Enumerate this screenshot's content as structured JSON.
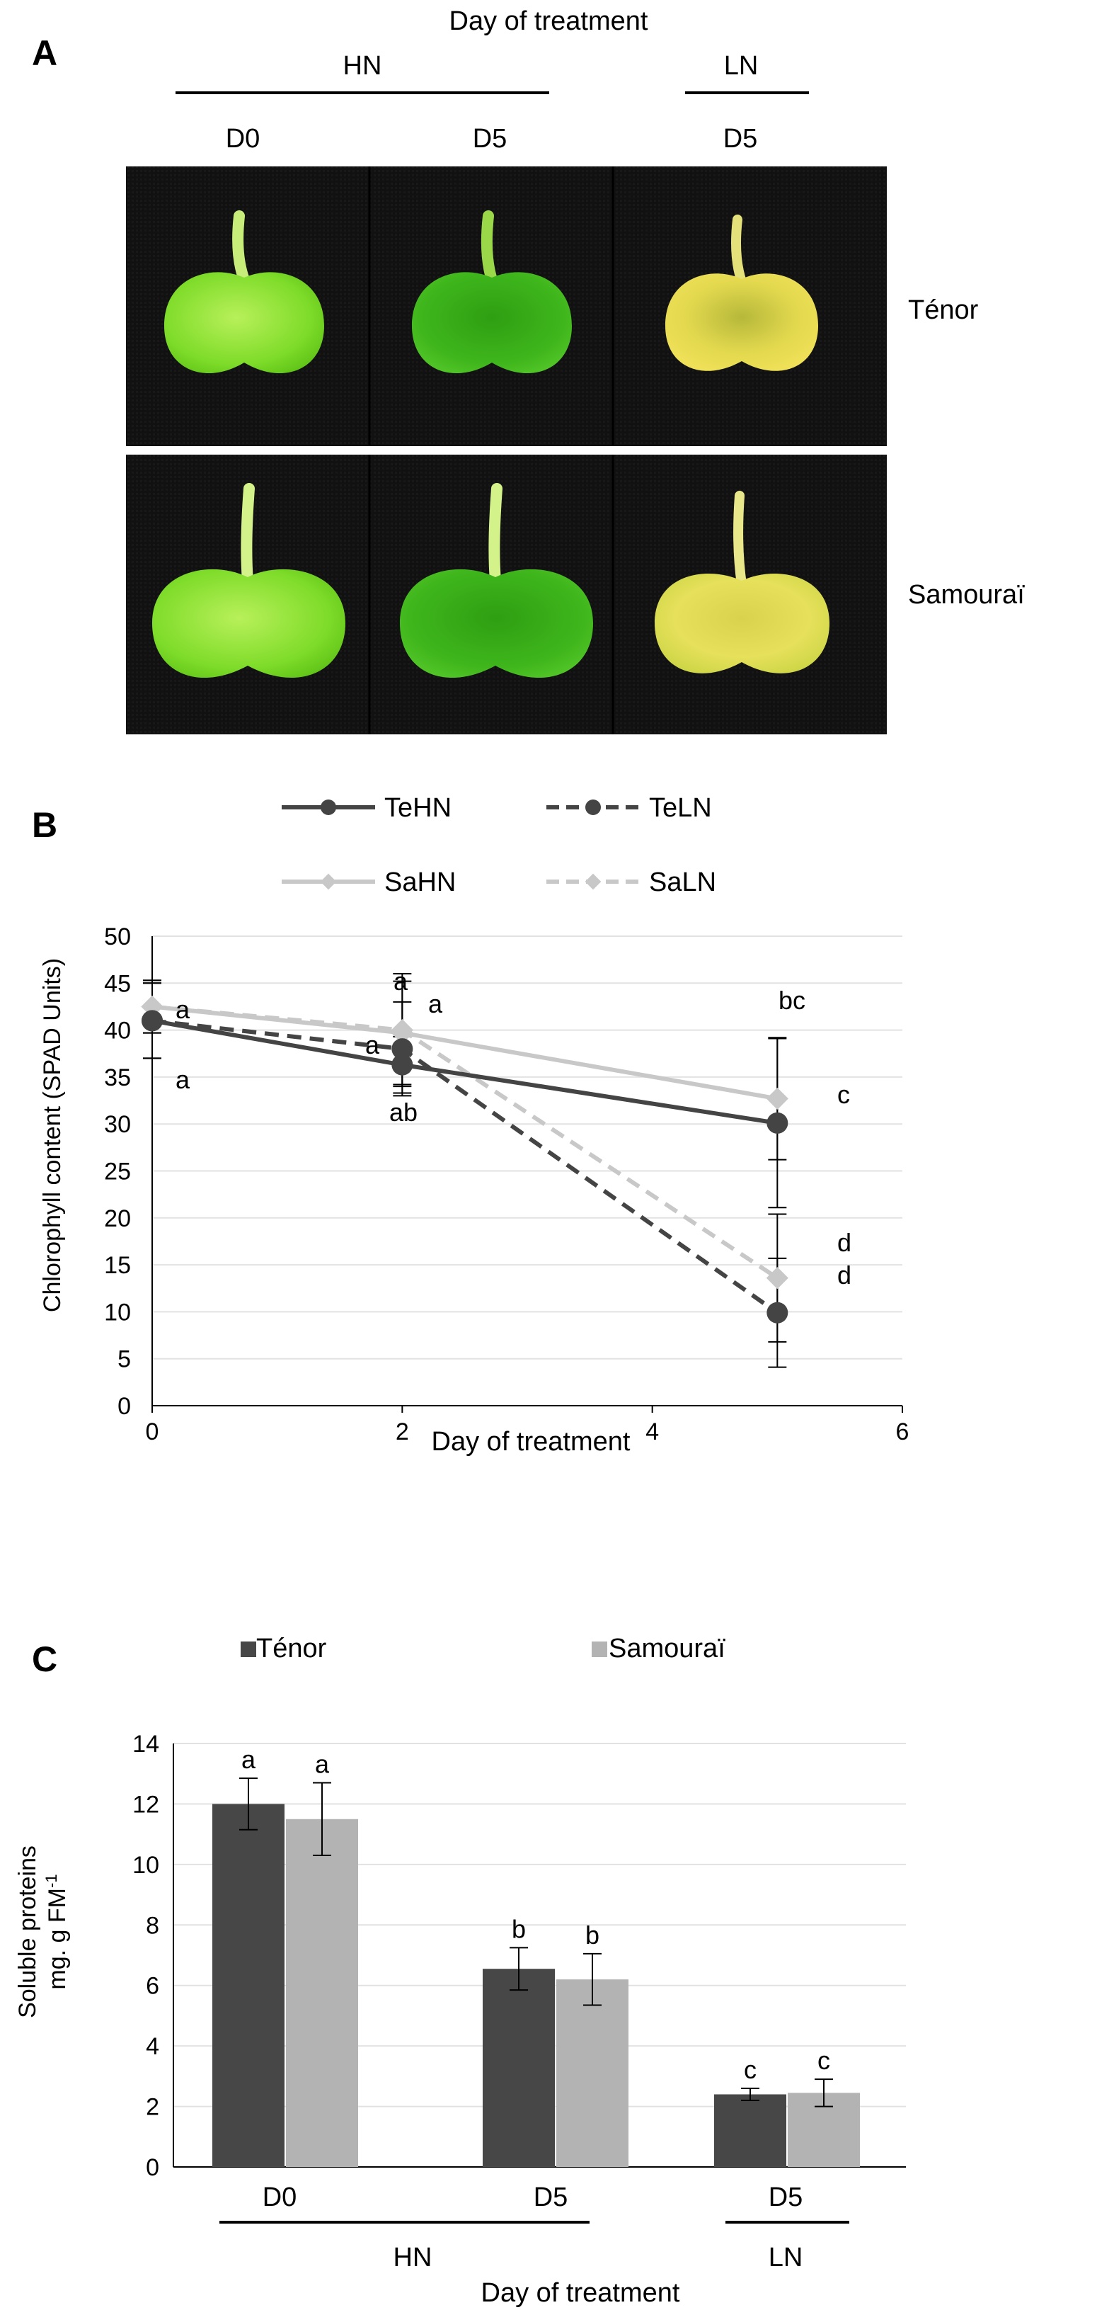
{
  "panel_a": {
    "panel_label": "A",
    "header": "Day of treatment",
    "group_hn": "HN",
    "group_ln": "LN",
    "col_labels": [
      "D0",
      "D5",
      "D5"
    ],
    "row_labels": [
      "Ténor",
      "Samouraï"
    ]
  },
  "panel_b": {
    "panel_label": "B",
    "legend": [
      "TeHN",
      "TeLN",
      "SaHN",
      "SaLN"
    ],
    "ylabel": "Chlorophyll content (SPAD Units)",
    "xlabel": "Day of treatment",
    "y_ticks": [
      "0",
      "5",
      "10",
      "15",
      "20",
      "25",
      "30",
      "35",
      "40",
      "45",
      "50"
    ],
    "x_ticks": [
      "0",
      "2",
      "4",
      "6"
    ],
    "annotations": {
      "d0_top": "a",
      "d0_bottom": "a",
      "d2_top": "a",
      "d2_right": "a",
      "d2_left": "a",
      "d2_bottom": "ab",
      "d5_top": "bc",
      "d5_c": "c",
      "d5_d1": "d",
      "d5_d2": "d"
    }
  },
  "panel_c": {
    "panel_label": "C",
    "legend": [
      "Ténor",
      "Samouraï"
    ],
    "ylabel_line1": "Soluble proteins",
    "ylabel_line2": "mg. g FM",
    "ylabel_sup": "-1",
    "y_ticks": [
      "0",
      "2",
      "4",
      "6",
      "8",
      "10",
      "12",
      "14"
    ],
    "x_categories": [
      "D0",
      "D5",
      "D5"
    ],
    "group_hn": "HN",
    "group_ln": "LN",
    "xlabel": "Day of treatment",
    "bar_letters": [
      "a",
      "a",
      "b",
      "b",
      "c",
      "c"
    ]
  },
  "chart_data": [
    {
      "type": "line",
      "xlabel": "Day of treatment",
      "ylabel": "Chlorophyll content (SPAD Units)",
      "xlim": [
        0,
        6
      ],
      "ylim": [
        0,
        50
      ],
      "grid": true,
      "legend_position": "top",
      "x": [
        0,
        2,
        5
      ],
      "series": [
        {
          "name": "TeHN",
          "values": [
            41.0,
            36.3,
            30.1
          ],
          "errors": [
            4.0,
            3.0,
            9.0
          ],
          "color": "#444444",
          "dashed": false,
          "marker": "circle"
        },
        {
          "name": "TeLN",
          "values": [
            41.0,
            38.0,
            9.9
          ],
          "errors": [
            4.0,
            5.0,
            5.8
          ],
          "color": "#444444",
          "dashed": true,
          "marker": "circle"
        },
        {
          "name": "SaHN",
          "values": [
            42.5,
            39.7,
            32.7
          ],
          "errors": [
            2.8,
            5.5,
            6.5
          ],
          "color": "#c8c8c8",
          "dashed": false,
          "marker": "diamond"
        },
        {
          "name": "SaLN",
          "values": [
            42.5,
            40.0,
            13.6
          ],
          "errors": [
            2.8,
            6.0,
            6.8
          ],
          "color": "#c8c8c8",
          "dashed": true,
          "marker": "diamond"
        }
      ]
    },
    {
      "type": "bar",
      "categories": [
        "D0",
        "D5",
        "D5"
      ],
      "ylim": [
        0,
        14
      ],
      "grid": true,
      "legend_position": "top",
      "series": [
        {
          "name": "Ténor",
          "values": [
            12.0,
            6.55,
            2.4
          ],
          "errors": [
            0.85,
            0.7,
            0.2
          ],
          "color": "#474747"
        },
        {
          "name": "Samouraï",
          "values": [
            11.5,
            6.2,
            2.45
          ],
          "errors": [
            1.2,
            0.85,
            0.45
          ],
          "color": "#b3b3b3"
        }
      ]
    }
  ]
}
